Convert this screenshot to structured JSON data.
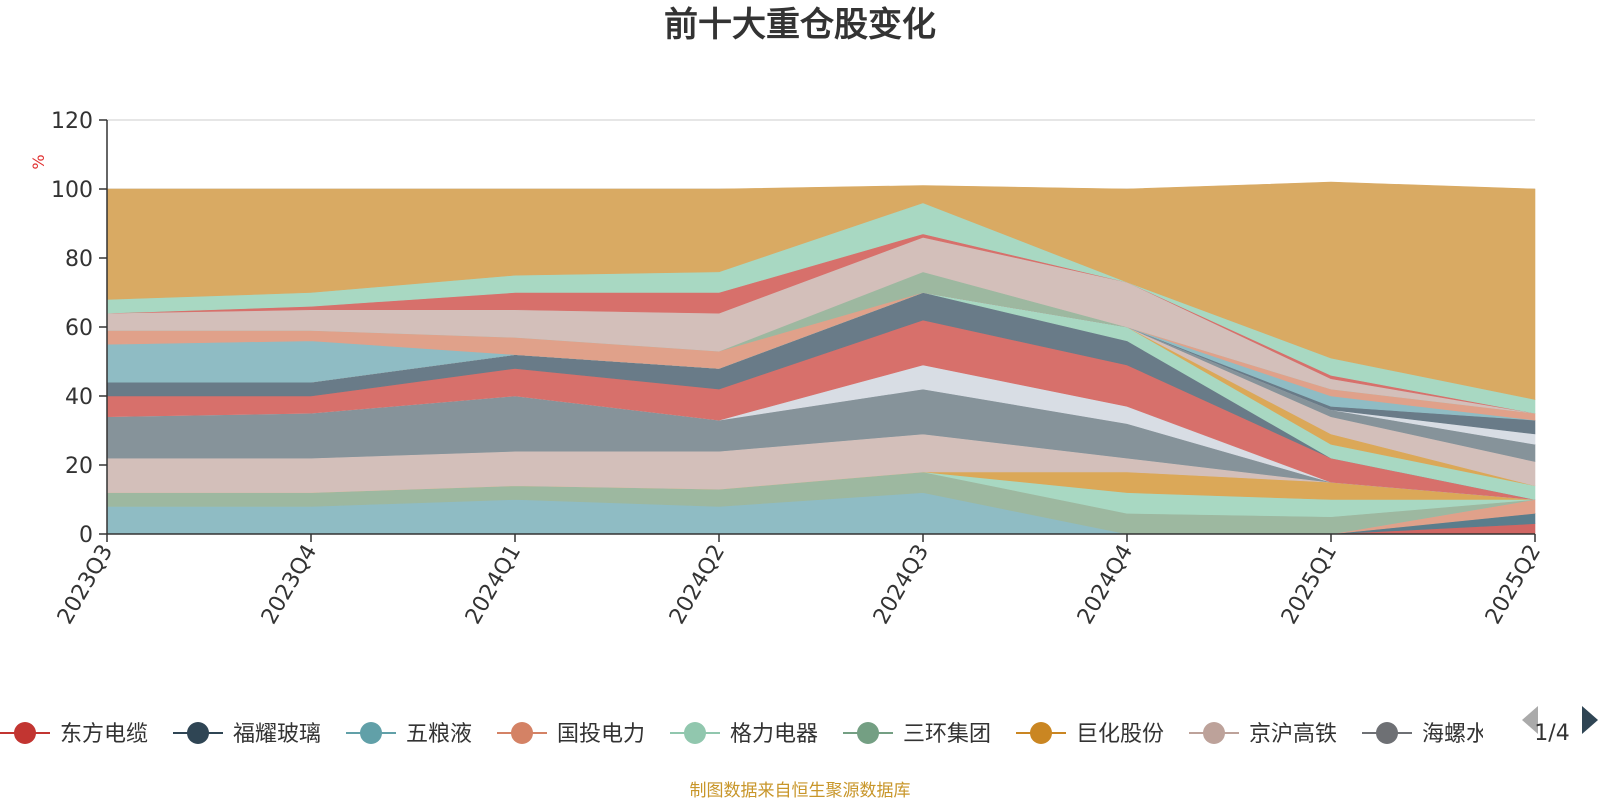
{
  "chart_data": {
    "type": "area",
    "stacked": true,
    "title": "前十大重仓股变化",
    "unit": "%",
    "ylim": [
      0,
      120
    ],
    "yticks": [
      0,
      20,
      40,
      60,
      80,
      100,
      120
    ],
    "grid": true,
    "categories": [
      "2023Q3",
      "2023Q4",
      "2024Q1",
      "2024Q2",
      "2024Q3",
      "2024Q4",
      "2025Q1",
      "2025Q2"
    ],
    "series": [
      {
        "color": "#d06663",
        "values": [
          0,
          0,
          0,
          0,
          0,
          0,
          0,
          3
        ]
      },
      {
        "color": "#5a7d8c",
        "values": [
          0,
          0,
          0,
          0,
          0,
          0,
          0,
          3
        ]
      },
      {
        "color": "#e0a18a",
        "values": [
          0,
          0,
          0,
          0,
          0,
          0,
          0,
          4
        ]
      },
      {
        "color": "#8fbcc4",
        "values": [
          8,
          8,
          10,
          8,
          12,
          0,
          0,
          0
        ]
      },
      {
        "color": "#9db8a0",
        "values": [
          4,
          4,
          4,
          5,
          6,
          6,
          5,
          0
        ]
      },
      {
        "color": "#a8d8c2",
        "values": [
          0,
          0,
          0,
          0,
          0,
          6,
          5,
          0
        ]
      },
      {
        "color": "#dba858",
        "values": [
          0,
          0,
          0,
          0,
          0,
          6,
          5,
          0
        ]
      },
      {
        "color": "#d3bfba",
        "values": [
          10,
          10,
          10,
          11,
          11,
          4,
          0,
          0
        ]
      },
      {
        "color": "#a9b3b6",
        "values": [
          0,
          0,
          0,
          0,
          0,
          0,
          0,
          0
        ]
      },
      {
        "color": "#86939a",
        "values": [
          12,
          13,
          16,
          9,
          13,
          10,
          0,
          0
        ]
      },
      {
        "color": "#d8dde4",
        "values": [
          0,
          0,
          0,
          0,
          7,
          5,
          0,
          0
        ]
      },
      {
        "color": "#d7706b",
        "values": [
          6,
          5,
          8,
          9,
          13,
          12,
          7,
          0
        ]
      },
      {
        "color": "#697b88",
        "values": [
          4,
          4,
          4,
          6,
          8,
          7,
          0,
          0
        ]
      },
      {
        "color": "#a8d8c2",
        "values": [
          0,
          0,
          0,
          0,
          0,
          4,
          4,
          4
        ]
      },
      {
        "color": "#dba858",
        "values": [
          0,
          0,
          0,
          0,
          0,
          0,
          3,
          0
        ]
      },
      {
        "color": "#d3bfba",
        "values": [
          0,
          0,
          0,
          0,
          0,
          0,
          5,
          7
        ]
      },
      {
        "color": "#86939a",
        "values": [
          0,
          0,
          0,
          0,
          0,
          0,
          2,
          5
        ]
      },
      {
        "color": "#d8dde4",
        "values": [
          0,
          0,
          0,
          0,
          0,
          0,
          0,
          3
        ]
      },
      {
        "color": "#697b88",
        "values": [
          0,
          0,
          0,
          0,
          0,
          0,
          1,
          4
        ]
      },
      {
        "color": "#8fbcc4",
        "values": [
          11,
          12,
          0,
          0,
          0,
          0,
          3,
          0
        ]
      },
      {
        "color": "#e0a18a",
        "values": [
          4,
          3,
          5,
          5,
          0,
          0,
          2,
          2
        ]
      },
      {
        "color": "#9db8a0",
        "values": [
          0,
          0,
          0,
          0,
          6,
          0,
          0,
          0
        ]
      },
      {
        "color": "#d3bfba",
        "values": [
          5,
          6,
          8,
          11,
          10,
          13,
          3,
          0
        ]
      },
      {
        "color": "#d7706b",
        "values": [
          0,
          1,
          5,
          6,
          1,
          0,
          1,
          0
        ]
      },
      {
        "color": "#a8d8c2",
        "values": [
          4,
          4,
          5,
          6,
          9,
          0,
          5,
          4
        ]
      },
      {
        "color": "#d9aa63",
        "values": [
          32,
          30,
          25,
          24,
          5,
          27,
          51,
          61
        ]
      }
    ]
  },
  "legend": {
    "items": [
      {
        "label": "东方电缆",
        "color": "#c23531"
      },
      {
        "label": "福耀玻璃",
        "color": "#2f4554"
      },
      {
        "label": "五粮液",
        "color": "#61a0a8"
      },
      {
        "label": "国投电力",
        "color": "#d48265"
      },
      {
        "label": "格力电器",
        "color": "#91c7ae"
      },
      {
        "label": "三环集团",
        "color": "#749f83"
      },
      {
        "label": "巨化股份",
        "color": "#ca8622"
      },
      {
        "label": "京沪高铁",
        "color": "#bda29a"
      },
      {
        "label": "海螺水泥",
        "color": "#6e7074"
      }
    ],
    "page": "1/4"
  },
  "source": "制图数据来自恒生聚源数据库"
}
